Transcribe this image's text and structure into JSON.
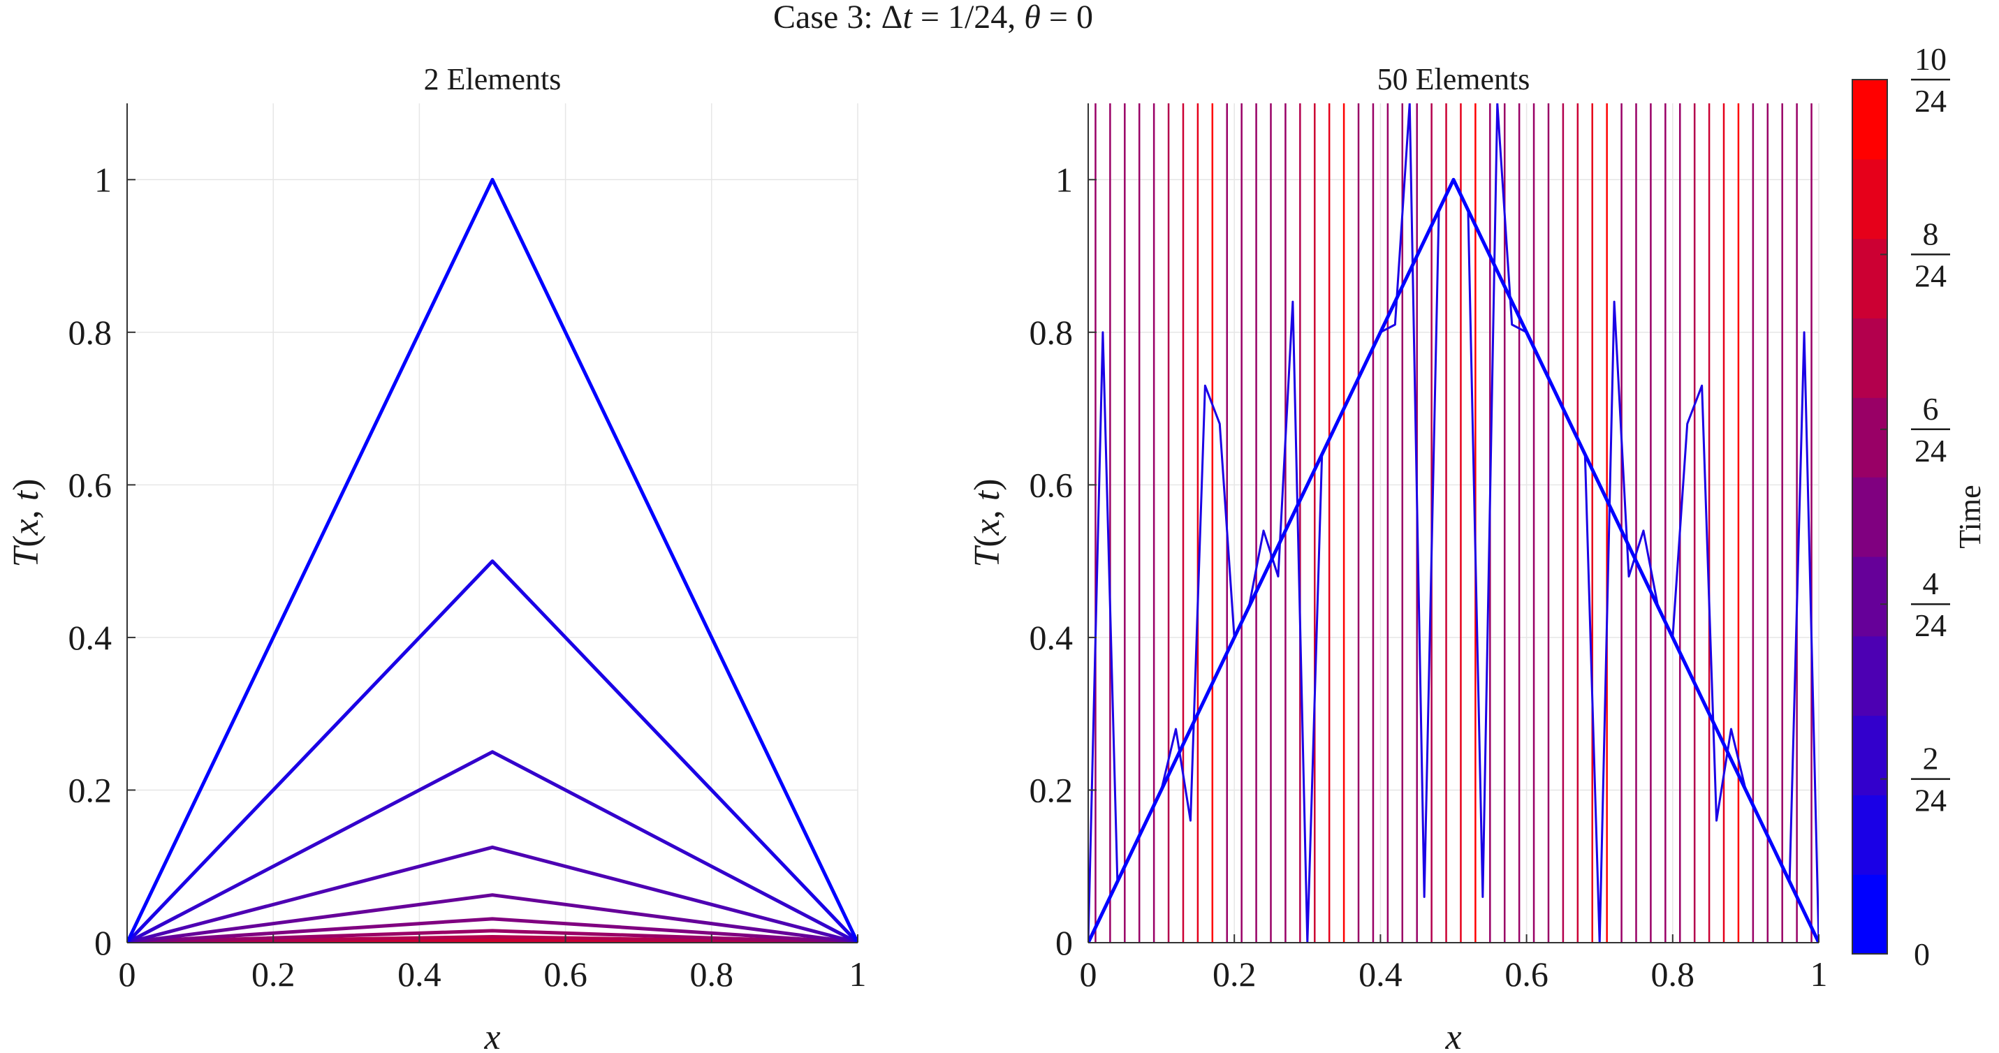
{
  "figure_title": "Case 3: Δt = 1/24, θ = 0",
  "colors": {
    "start": "#0000ff",
    "end": "#ff0000",
    "grid": "#e6e6e6",
    "axis": "#333333"
  },
  "chart_data": [
    {
      "type": "line",
      "title": "2 Elements",
      "xlabel": "x",
      "ylabel": "T(x, t)",
      "xlim": [
        0,
        1
      ],
      "ylim": [
        0,
        1.1
      ],
      "x_ticks": [
        0,
        0.2,
        0.4,
        0.6,
        0.8,
        1
      ],
      "y_ticks": [
        0,
        0.2,
        0.4,
        0.6,
        0.8,
        1
      ],
      "grid": true,
      "x": [
        0,
        0.5,
        1
      ],
      "series": [
        {
          "time_step": 0,
          "values": [
            0,
            1,
            0
          ]
        },
        {
          "time_step": 1,
          "values": [
            0,
            0.5,
            0
          ]
        },
        {
          "time_step": 2,
          "values": [
            0,
            0.25,
            0
          ]
        },
        {
          "time_step": 3,
          "values": [
            0,
            0.125,
            0
          ]
        },
        {
          "time_step": 4,
          "values": [
            0,
            0.0625,
            0
          ]
        },
        {
          "time_step": 5,
          "values": [
            0,
            0.03125,
            0
          ]
        },
        {
          "time_step": 6,
          "values": [
            0,
            0.015625,
            0
          ]
        },
        {
          "time_step": 7,
          "values": [
            0,
            0.0078125,
            0
          ]
        },
        {
          "time_step": 8,
          "values": [
            0,
            0.00390625,
            0
          ]
        },
        {
          "time_step": 9,
          "values": [
            0,
            0.001953125,
            0
          ]
        },
        {
          "time_step": 10,
          "values": [
            0,
            0.0009765625,
            0
          ]
        }
      ]
    },
    {
      "type": "line",
      "title": "50 Elements",
      "xlabel": "x",
      "ylabel": "T(x, t)",
      "xlim": [
        0,
        1
      ],
      "ylim": [
        0,
        1.1
      ],
      "x_ticks": [
        0,
        0.2,
        0.4,
        0.6,
        0.8,
        1
      ],
      "y_ticks": [
        0,
        0.2,
        0.4,
        0.6,
        0.8,
        1
      ],
      "grid": true,
      "initial_series": {
        "time_step": 0,
        "x": [
          0,
          0.5,
          1
        ],
        "values": [
          0,
          1,
          0
        ]
      },
      "oscillating_series": {
        "time_step": 1,
        "x": [
          0,
          0.02,
          0.04,
          0.06,
          0.08,
          0.1,
          0.12,
          0.14,
          0.16,
          0.18,
          0.2,
          0.22,
          0.24,
          0.26,
          0.28,
          0.3,
          0.32,
          0.34,
          0.36,
          0.38,
          0.4,
          0.42,
          0.44,
          0.46,
          0.48,
          0.5,
          0.52,
          0.54,
          0.56,
          0.58,
          0.6,
          0.62,
          0.64,
          0.66,
          0.68,
          0.7,
          0.72,
          0.74,
          0.76,
          0.78,
          0.8,
          0.82,
          0.84,
          0.86,
          0.88,
          0.9,
          0.92,
          0.94,
          0.96,
          0.98,
          1
        ],
        "values": [
          0,
          0.8,
          0.08,
          0.12,
          0.16,
          0.2,
          0.28,
          0.16,
          0.73,
          0.68,
          0.4,
          0.44,
          0.54,
          0.48,
          0.84,
          0,
          0.64,
          0.68,
          0.72,
          0.76,
          0.8,
          0.81,
          1.1,
          0.06,
          0.96,
          1,
          0.96,
          0.06,
          1.1,
          0.81,
          0.8,
          0.76,
          0.72,
          0.68,
          0.64,
          0,
          0.84,
          0.48,
          0.54,
          0.44,
          0.4,
          0.68,
          0.73,
          0.16,
          0.28,
          0.2,
          0.16,
          0.12,
          0.08,
          0.8,
          0
        ]
      },
      "vertical_line_count": 50,
      "vertical_lines_note_time_range": [
        2,
        10
      ]
    }
  ],
  "colorbar": {
    "label": "Time",
    "levels": 11,
    "range": [
      0,
      10
    ],
    "ticks": [
      {
        "value": 0,
        "label": "0"
      },
      {
        "value": 2,
        "num": "2",
        "den": "24"
      },
      {
        "value": 4,
        "num": "4",
        "den": "24"
      },
      {
        "value": 6,
        "num": "6",
        "den": "24"
      },
      {
        "value": 8,
        "num": "8",
        "den": "24"
      },
      {
        "value": 10,
        "num": "10",
        "den": "24"
      }
    ]
  }
}
